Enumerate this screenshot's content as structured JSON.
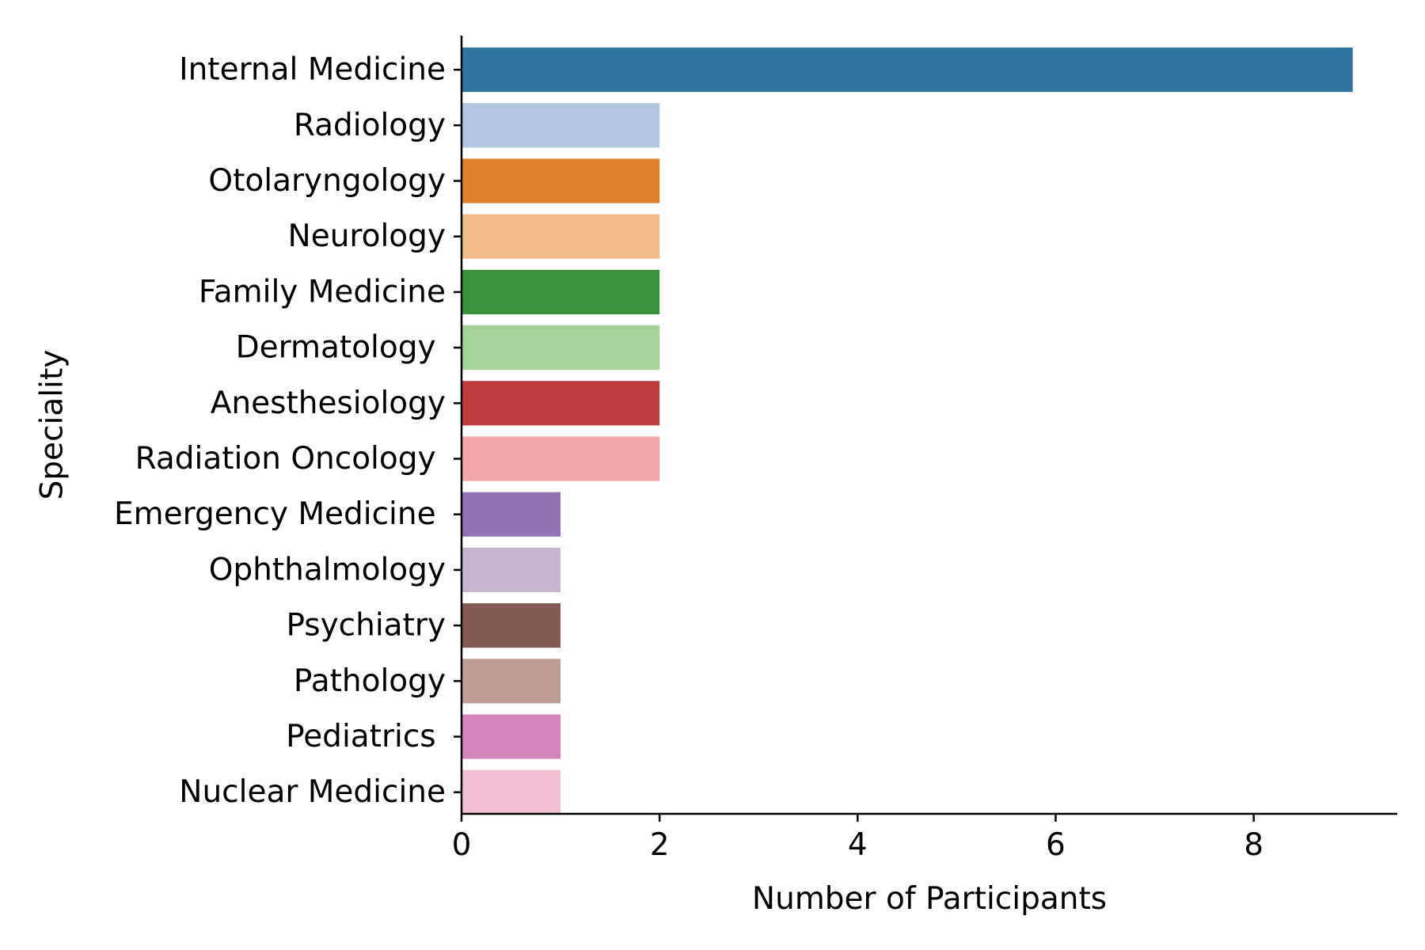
{
  "chart_data": {
    "type": "bar",
    "orientation": "horizontal",
    "title": "",
    "xlabel": "Number of Participants",
    "ylabel": "Speciality",
    "xlim": [
      0,
      9.45
    ],
    "xticks": [
      0,
      2,
      4,
      6,
      8
    ],
    "grid": false,
    "legend": "none",
    "categories": [
      "Internal Medicine",
      "Radiology",
      "Otolaryngology",
      "Neurology",
      "Family Medicine",
      "Dermatology ",
      "Anesthesiology",
      "Radiation Oncology ",
      "Emergency Medicine ",
      "Ophthalmology",
      "Psychiatry",
      "Pathology",
      "Pediatrics ",
      "Nuclear Medicine"
    ],
    "values": [
      9,
      2,
      2,
      2,
      2,
      2,
      2,
      2,
      1,
      1,
      1,
      1,
      1,
      1
    ],
    "colors": [
      "#3274a1",
      "#b3c6e1",
      "#e1812c",
      "#efbb8a",
      "#3a923a",
      "#a1d496",
      "#c03d3e",
      "#f2a5a5",
      "#9372b2",
      "#c5b5d1",
      "#845b53",
      "#bd9e97",
      "#d684bd",
      "#f0bfd4"
    ]
  }
}
